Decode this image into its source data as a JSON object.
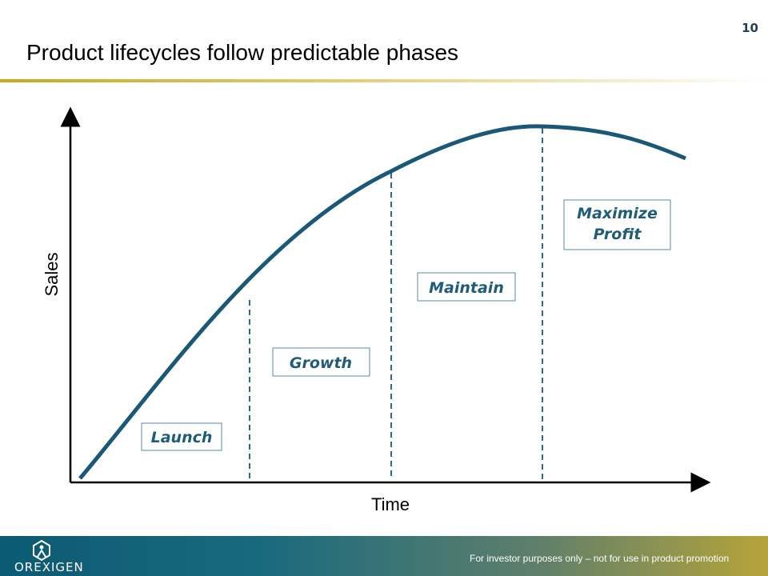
{
  "header": {
    "title": "Product lifecycles follow predictable phases",
    "page_number": "10"
  },
  "diagram": {
    "y_axis_label": "Sales",
    "x_axis_label": "Time",
    "phases": [
      {
        "label": "Launch"
      },
      {
        "label": "Growth"
      },
      {
        "label": "Maintain"
      },
      {
        "label": "Maximize Profit"
      }
    ]
  },
  "footer": {
    "logo": "OREXIGEN",
    "disclaimer": "For investor purposes only – not for use in product promotion"
  }
}
